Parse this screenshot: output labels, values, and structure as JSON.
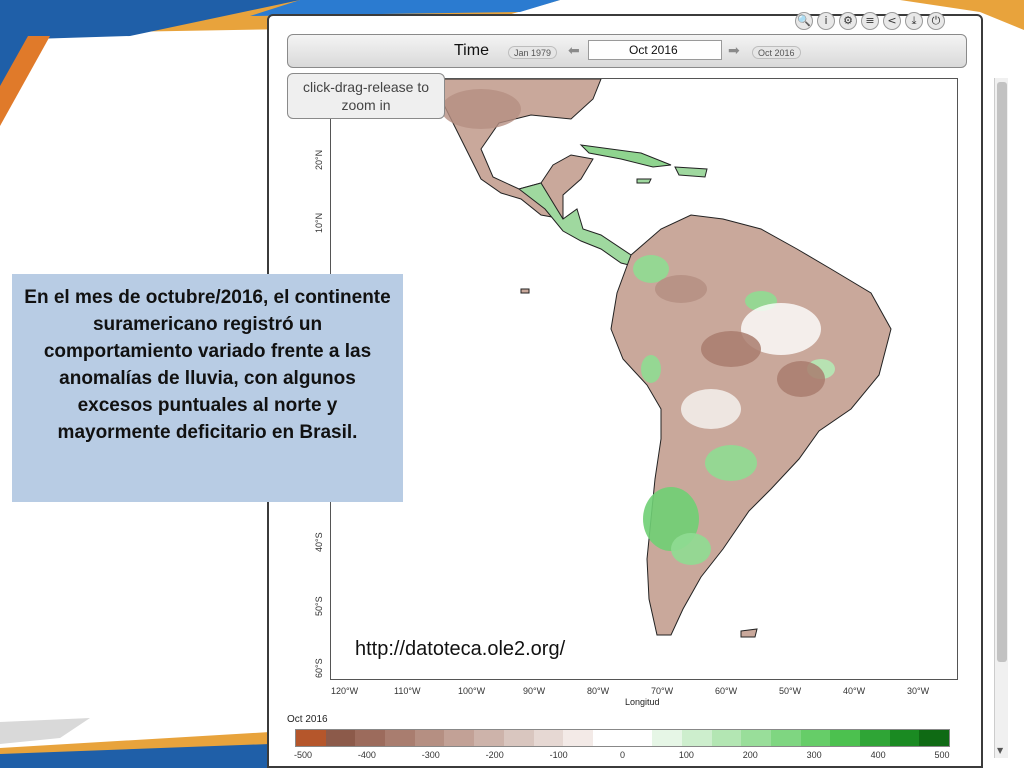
{
  "viewer": {
    "time_label": "Time",
    "time_start": "Jan 1979",
    "time_current": "Oct 2016",
    "time_end": "Oct 2016",
    "zoom_hint": "click-drag-release to zoom in",
    "toolbar_icons": [
      "zoom-icon",
      "info-icon",
      "gear-icon",
      "list-icon",
      "share-icon",
      "download-icon",
      "power-icon"
    ]
  },
  "map": {
    "lat_labels": [
      "20°N",
      "10°N",
      "40°S",
      "50°S",
      "60°S"
    ],
    "lon_labels": [
      "120°W",
      "110°W",
      "100°W",
      "90°W",
      "80°W",
      "70°W",
      "60°W",
      "50°W",
      "40°W",
      "30°W"
    ],
    "lon_title": "Longitud"
  },
  "colorbar": {
    "month": "Oct 2016",
    "ticks": [
      "-500",
      "-400",
      "-300",
      "-200",
      "-100",
      "0",
      "100",
      "200",
      "300",
      "400",
      "500"
    ],
    "colors": [
      "#b5562b",
      "#8c5a4a",
      "#9c6b5c",
      "#a97d6f",
      "#b58f82",
      "#c2a196",
      "#cdb3aa",
      "#d9c6bf",
      "#e6d8d3",
      "#f3eae7",
      "#ffffff",
      "#ffffff",
      "#e6f6e6",
      "#cdeecd",
      "#b3e6b3",
      "#99de9a",
      "#7fd681",
      "#66cd68",
      "#4cc14f",
      "#2fa536",
      "#1a8a22",
      "#0f6a14"
    ]
  },
  "caption": "En el mes de octubre/2016, el continente suramericano registró un comportamiento variado frente a las anomalías de lluvia, con algunos excesos puntuales al norte y mayormente deficitario en Brasil.",
  "source_url": "http://datoteca.ole2.org/"
}
